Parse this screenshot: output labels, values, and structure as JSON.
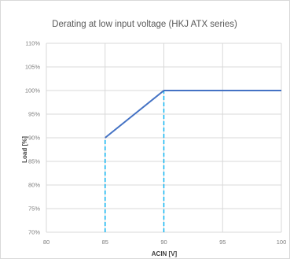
{
  "chart_data": {
    "type": "line",
    "title": "Derating at low input voltage (HKJ ATX series)",
    "xlabel": "ACIN [V]",
    "ylabel": "Load [%]",
    "xlim": [
      80,
      100
    ],
    "ylim": [
      70,
      110
    ],
    "x_ticks": [
      "80",
      "85",
      "90",
      "95",
      "100"
    ],
    "y_ticks": [
      "70%",
      "75%",
      "80%",
      "85%",
      "90%",
      "95%",
      "100%",
      "105%",
      "110%"
    ],
    "grid": true,
    "legend": "none",
    "series": [
      {
        "x": [
          85,
          90,
          100
        ],
        "y": [
          90,
          100,
          100
        ],
        "color": "#4472c4"
      }
    ],
    "reference_lines": [
      {
        "x": 85,
        "y_from": 70,
        "y_to": 90,
        "color": "#00b0f0",
        "style": "dashed"
      },
      {
        "x": 90,
        "y_from": 70,
        "y_to": 100,
        "color": "#00b0f0",
        "style": "dashed"
      }
    ]
  }
}
